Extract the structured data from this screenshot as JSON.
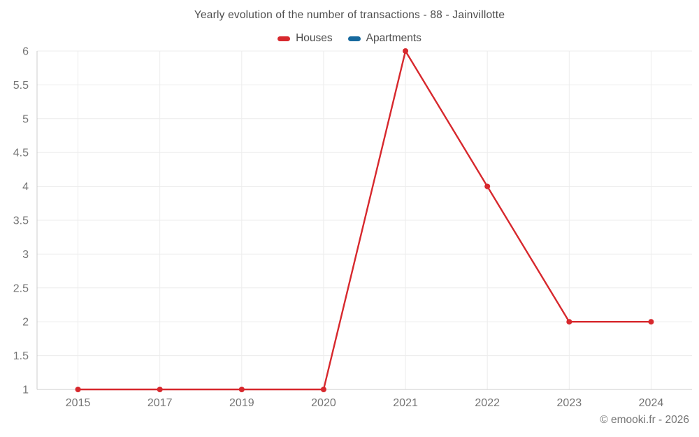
{
  "footer": {
    "credit": "© emooki.fr - 2026"
  },
  "chart_data": {
    "type": "line",
    "title": "Yearly evolution of the number of transactions - 88 - Jainvillotte",
    "categories": [
      "2015",
      "2017",
      "2019",
      "2020",
      "2021",
      "2022",
      "2023",
      "2024"
    ],
    "series": [
      {
        "name": "Houses",
        "color": "#d7282d",
        "values": [
          1,
          1,
          1,
          1,
          6,
          4,
          2,
          2
        ]
      },
      {
        "name": "Apartments",
        "color": "#16699e",
        "values": []
      }
    ],
    "xlabel": "",
    "ylabel": "",
    "ylim": [
      1,
      6
    ],
    "yticks": [
      "6",
      "5.5",
      "5",
      "4.5",
      "4",
      "3.5",
      "3",
      "2.5",
      "2",
      "1.5",
      "1"
    ],
    "grid": true,
    "legend_position": "top-center",
    "marker_radius": 4,
    "line_width": 2.4,
    "colors": {
      "grid": "#ececec",
      "axis": "#cccccc",
      "tick_text": "#757575",
      "title_text": "#4d4d4d"
    }
  }
}
